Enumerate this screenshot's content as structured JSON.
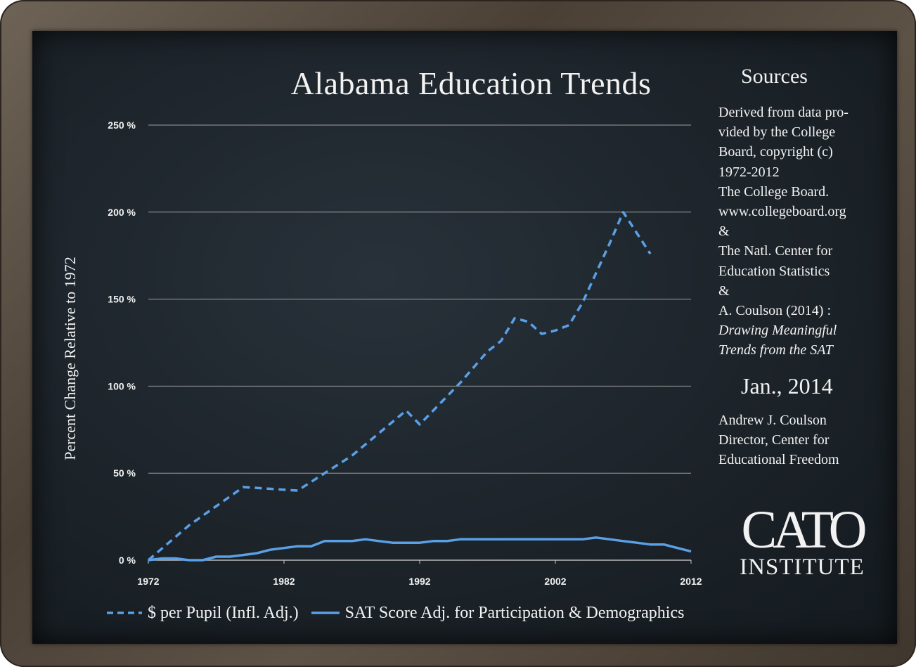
{
  "title": "Alabama Education Trends",
  "colors": {
    "series": "#5aa0e6",
    "grid": "#c8c8c8",
    "text": "#f2f2f2"
  },
  "chart_data": {
    "type": "line",
    "title": "Alabama Education Trends",
    "xlabel": "",
    "ylabel": "Percent Change Relative to 1972",
    "xlim": [
      1972,
      2012
    ],
    "ylim": [
      0,
      250
    ],
    "x_ticks": [
      "1972",
      "1982",
      "1992",
      "2002",
      "2012"
    ],
    "y_ticks": [
      "0 %",
      "50 %",
      "100 %",
      "150 %",
      "200 %",
      "250 %"
    ],
    "grid": true,
    "legend": "bottom",
    "series": [
      {
        "name": "$ per Pupil (Infl. Adj.)",
        "style": "dashed",
        "points": [
          [
            1972,
            0
          ],
          [
            1975,
            20
          ],
          [
            1979,
            42
          ],
          [
            1983,
            40
          ],
          [
            1987,
            60
          ],
          [
            1991,
            86
          ],
          [
            1992,
            78
          ],
          [
            1993,
            86
          ],
          [
            1995,
            102
          ],
          [
            1997,
            120
          ],
          [
            1998,
            126
          ],
          [
            1999,
            139
          ],
          [
            2000,
            137
          ],
          [
            2001,
            130
          ],
          [
            2002,
            132
          ],
          [
            2003,
            135
          ],
          [
            2004,
            148
          ],
          [
            2005,
            165
          ],
          [
            2006,
            182
          ],
          [
            2007,
            200
          ],
          [
            2008,
            188
          ],
          [
            2009,
            176
          ]
        ]
      },
      {
        "name": "SAT Score Adj. for Participation & Demographics",
        "style": "solid",
        "points": [
          [
            1972,
            0
          ],
          [
            1973,
            1
          ],
          [
            1974,
            1
          ],
          [
            1975,
            0
          ],
          [
            1976,
            0
          ],
          [
            1977,
            2
          ],
          [
            1978,
            2
          ],
          [
            1979,
            3
          ],
          [
            1980,
            4
          ],
          [
            1981,
            6
          ],
          [
            1982,
            7
          ],
          [
            1983,
            8
          ],
          [
            1984,
            8
          ],
          [
            1985,
            11
          ],
          [
            1986,
            11
          ],
          [
            1987,
            11
          ],
          [
            1988,
            12
          ],
          [
            1989,
            11
          ],
          [
            1990,
            10
          ],
          [
            1991,
            10
          ],
          [
            1992,
            10
          ],
          [
            1993,
            11
          ],
          [
            1994,
            11
          ],
          [
            1995,
            12
          ],
          [
            1996,
            12
          ],
          [
            1997,
            12
          ],
          [
            1998,
            12
          ],
          [
            1999,
            12
          ],
          [
            2000,
            12
          ],
          [
            2001,
            12
          ],
          [
            2002,
            12
          ],
          [
            2003,
            12
          ],
          [
            2004,
            12
          ],
          [
            2005,
            13
          ],
          [
            2006,
            12
          ],
          [
            2007,
            11
          ],
          [
            2008,
            10
          ],
          [
            2009,
            9
          ],
          [
            2010,
            9
          ],
          [
            2011,
            7
          ],
          [
            2012,
            5
          ]
        ]
      }
    ]
  },
  "sources": {
    "title": "Sources",
    "lines": [
      "Derived from data pro-",
      "vided by the College",
      "Board, copyright (c)",
      "1972-2012",
      "The College Board.",
      "www.collegeboard.org",
      "&",
      "The Natl. Center for",
      "Education Statistics",
      "&",
      "A. Coulson (2014) :"
    ],
    "italic_lines": [
      "Drawing Meaningful",
      "Trends from the SAT"
    ],
    "date": "Jan., 2014",
    "author_lines": [
      "Andrew J. Coulson",
      "Director, Center for",
      "Educational Freedom"
    ]
  },
  "logo": {
    "main": "CATO",
    "sub": "INSTITUTE"
  }
}
